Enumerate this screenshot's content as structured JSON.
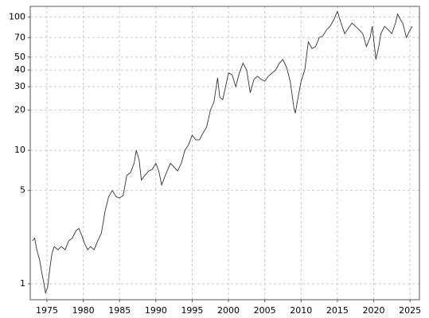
{
  "chart_data": {
    "type": "line",
    "log_y": true,
    "grid": true,
    "x": [
      1973.0,
      1973.3,
      1973.6,
      1974.0,
      1974.3,
      1974.6,
      1974.8,
      1975.1,
      1975.4,
      1975.7,
      1976.0,
      1976.5,
      1977.0,
      1977.5,
      1978.0,
      1978.5,
      1979.0,
      1979.4,
      1979.8,
      1980.2,
      1980.6,
      1981.0,
      1981.5,
      1982.0,
      1982.5,
      1983.0,
      1983.5,
      1984.0,
      1984.5,
      1985.0,
      1985.5,
      1986.0,
      1986.5,
      1987.0,
      1987.3,
      1987.7,
      1988.0,
      1988.5,
      1989.0,
      1989.5,
      1990.0,
      1990.4,
      1990.8,
      1991.3,
      1992.0,
      1992.5,
      1993.0,
      1993.5,
      1994.0,
      1994.5,
      1995.0,
      1995.5,
      1996.0,
      1996.5,
      1997.0,
      1997.5,
      1998.0,
      1998.5,
      1998.8,
      1999.2,
      1999.6,
      2000.0,
      2000.5,
      2001.0,
      2001.5,
      2002.0,
      2002.5,
      2003.0,
      2003.5,
      2004.0,
      2004.5,
      2005.0,
      2005.5,
      2006.0,
      2006.5,
      2007.0,
      2007.5,
      2008.0,
      2008.5,
      2009.0,
      2009.2,
      2009.6,
      2010.0,
      2010.5,
      2011.0,
      2011.5,
      2012.0,
      2012.5,
      2013.0,
      2013.5,
      2014.0,
      2014.5,
      2015.0,
      2015.5,
      2016.0,
      2016.5,
      2017.0,
      2017.5,
      2018.0,
      2018.5,
      2019.0,
      2019.5,
      2019.8,
      2020.3,
      2020.7,
      2021.0,
      2021.5,
      2022.0,
      2022.5,
      2023.0,
      2023.3,
      2023.7,
      2024.0,
      2024.5,
      2024.9,
      2025.3
    ],
    "series": [
      {
        "color": "#333333",
        "values": [
          2.1,
          2.2,
          1.8,
          1.5,
          1.2,
          1.0,
          0.85,
          0.95,
          1.3,
          1.7,
          1.9,
          1.8,
          1.9,
          1.8,
          2.1,
          2.2,
          2.5,
          2.6,
          2.3,
          2.0,
          1.8,
          1.9,
          1.8,
          2.1,
          2.4,
          3.5,
          4.5,
          5.0,
          4.5,
          4.4,
          4.6,
          6.5,
          6.8,
          8.0,
          10.0,
          8.5,
          6.0,
          6.5,
          7.0,
          7.2,
          8.0,
          7.0,
          5.5,
          6.5,
          8.0,
          7.5,
          7.0,
          8.0,
          10.0,
          11.0,
          13.0,
          12.0,
          12.0,
          13.5,
          15.0,
          20.0,
          23.0,
          35.0,
          25.0,
          24.0,
          30.0,
          38.0,
          37.0,
          30.0,
          38.0,
          45.0,
          40.0,
          27.0,
          34.0,
          36.0,
          34.0,
          33.0,
          36.0,
          38.0,
          40.0,
          45.0,
          48.0,
          42.0,
          33.0,
          21.0,
          19.0,
          25.0,
          33.0,
          40.0,
          65.0,
          58.0,
          60.0,
          70.0,
          72.0,
          80.0,
          85.0,
          95.0,
          110.0,
          90.0,
          75.0,
          82.0,
          90.0,
          85.0,
          80.0,
          75.0,
          60.0,
          70.0,
          85.0,
          48.0,
          60.0,
          75.0,
          85.0,
          80.0,
          75.0,
          90.0,
          105.0,
          95.0,
          90.0,
          70.0,
          78.0,
          85.0
        ]
      }
    ],
    "xlim": [
      1972.7,
      2026.3
    ],
    "xticks": [
      1975,
      1980,
      1985,
      1990,
      1995,
      2000,
      2005,
      2010,
      2015,
      2020,
      2025
    ],
    "ylim": [
      0.76,
      120
    ],
    "yticks": [
      1,
      5,
      10,
      20,
      30,
      40,
      50,
      70,
      100
    ]
  }
}
